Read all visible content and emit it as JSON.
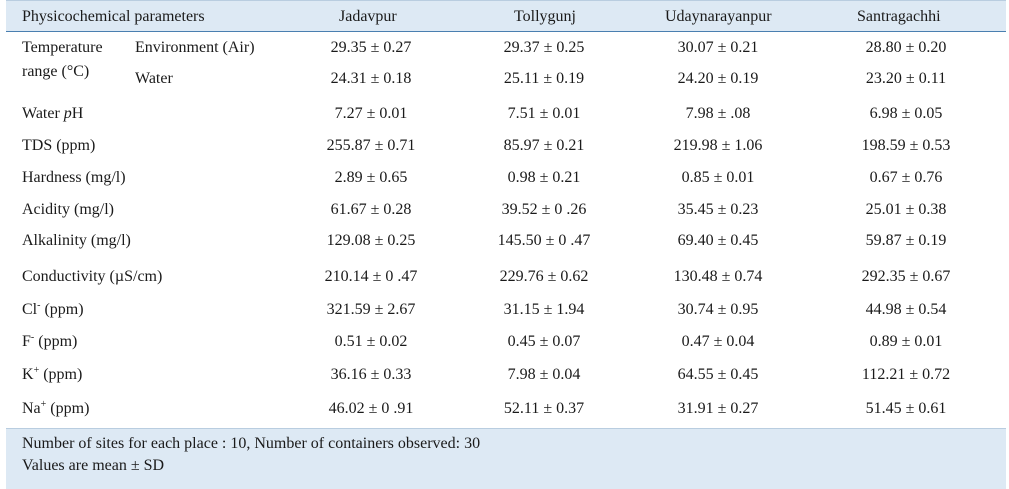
{
  "table": {
    "headers": [
      "Physicochemical parameters",
      "Jadavpur",
      "Tollygunj",
      "Udaynarayanpur",
      "Santragachhi"
    ],
    "temperature": {
      "label_line1": "Temperature",
      "label_line2": "range (°C)",
      "env_label": "Environment (Air)",
      "water_label": "Water",
      "env_values": [
        "29.35 ± 0.27",
        "29.37 ± 0.25",
        "30.07 ± 0.21",
        "28.80 ± 0.20"
      ],
      "water_values": [
        "24.31 ± 0.18",
        "25.11 ± 0.19",
        "24.20 ± 0.19",
        "23.20 ± 0.11"
      ]
    },
    "ph_label_prefix": "Water ",
    "ph_label_italic": "p",
    "ph_label_suffix": "H",
    "ph_values": [
      "7.27 ± 0.01",
      "7.51 ± 0.01",
      "7.98 ± .08",
      "6.98 ± 0.05"
    ],
    "rows": [
      {
        "label": "TDS (ppm)",
        "values": [
          "255.87 ± 0.71",
          "85.97 ± 0.21",
          "219.98 ± 1.06",
          "198.59 ± 0.53"
        ]
      },
      {
        "label": "Hardness (mg/l)",
        "values": [
          "2.89 ± 0.65",
          "0.98 ± 0.21",
          "0.85 ± 0.01",
          "0.67 ± 0.76"
        ]
      },
      {
        "label": "Acidity (mg/l)",
        "values": [
          "61.67 ± 0.28",
          "39.52 ± 0 .26",
          "35.45 ± 0.23",
          "25.01 ± 0.38"
        ]
      },
      {
        "label": "Alkalinity (mg/l)",
        "values": [
          "129.08 ± 0.25",
          "145.50 ± 0 .47",
          "69.40 ± 0.45",
          "59.87 ± 0.19"
        ]
      },
      {
        "label": "Conductivity (µS/cm)",
        "values": [
          "210.14 ± 0 .47",
          "229.76 ± 0.62",
          "130.48 ± 0.74",
          "292.35 ± 0.67"
        ]
      }
    ],
    "ion_rows": [
      {
        "base": "Cl",
        "sup": "-",
        "unit": " (ppm)",
        "values": [
          "321.59 ± 2.67",
          "31.15 ± 1.94",
          "30.74 ± 0.95",
          "44.98 ± 0.54"
        ]
      },
      {
        "base": "F",
        "sup": "-",
        "unit": " (ppm)",
        "values": [
          "0.51 ± 0.02",
          "0.45 ± 0.07",
          "0.47 ± 0.04",
          "0.89 ± 0.01"
        ]
      },
      {
        "base": "K",
        "sup": "+",
        "unit": " (ppm)",
        "values": [
          "36.16 ± 0.33",
          "7.98 ± 0.04",
          "64.55 ± 0.45",
          "112.21 ± 0.72"
        ]
      },
      {
        "base": "Na",
        "sup": "+",
        "unit": " (ppm)",
        "values": [
          "46.02 ± 0 .91",
          "52.11 ± 0.37",
          "31.91 ± 0.27",
          "51.45 ± 0.61"
        ]
      }
    ],
    "footer": {
      "line1": "Number of sites for each place : 10, Number of containers observed: 30",
      "line2": "Values are mean ± SD"
    }
  }
}
